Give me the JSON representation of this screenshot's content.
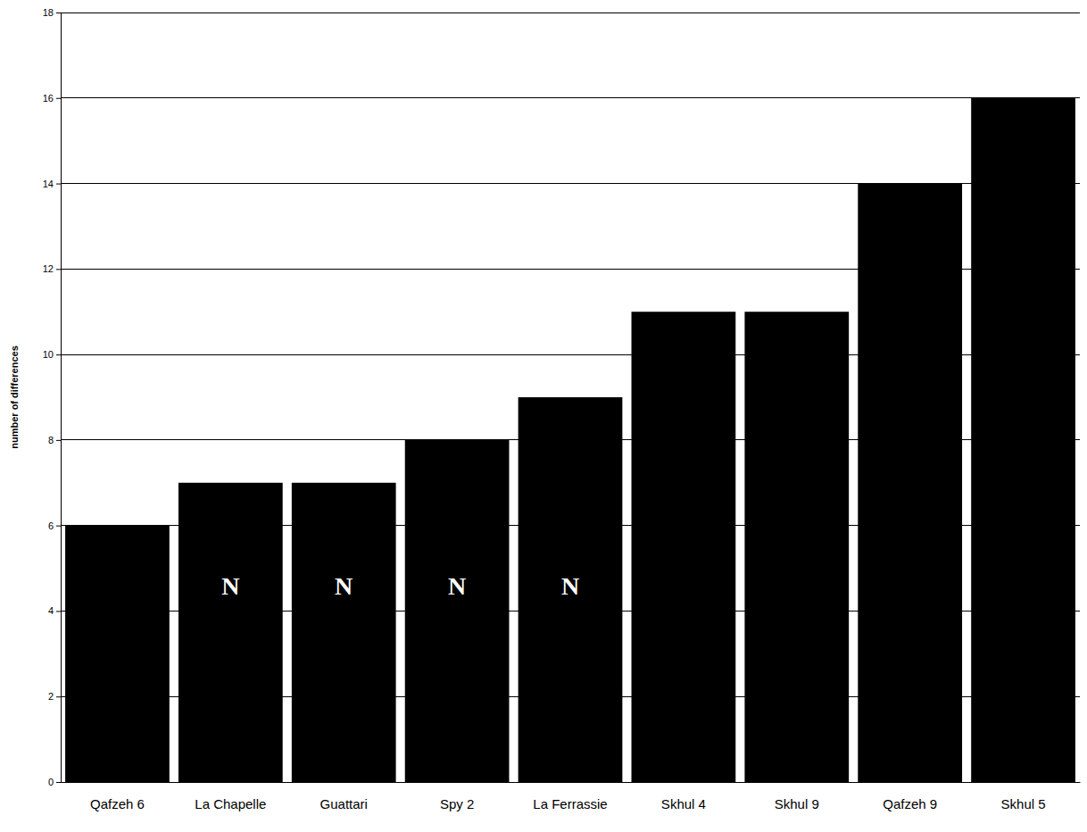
{
  "chart_data": {
    "type": "bar",
    "y_label": "number of differences",
    "categories": [
      "Qafzeh 6",
      "La Chapelle",
      "Guattari",
      "Spy 2",
      "La Ferrassie",
      "Skhul 4",
      "Skhul 9",
      "Qafzeh 9",
      "Skhul 5"
    ],
    "values": [
      6,
      7,
      7,
      8,
      9,
      11,
      11,
      14,
      16
    ],
    "color": "#000000",
    "ylim": [
      0,
      18
    ],
    "yticks": [
      0,
      2,
      4,
      6,
      8,
      10,
      12,
      14,
      16,
      18
    ],
    "grid": true,
    "annotations": [
      {
        "text": "N",
        "x": "La Chapelle"
      },
      {
        "text": "N",
        "x": "Guattari"
      },
      {
        "text": "N",
        "x": "Spy 2"
      },
      {
        "text": "N",
        "x": "La Ferrassie"
      }
    ]
  }
}
